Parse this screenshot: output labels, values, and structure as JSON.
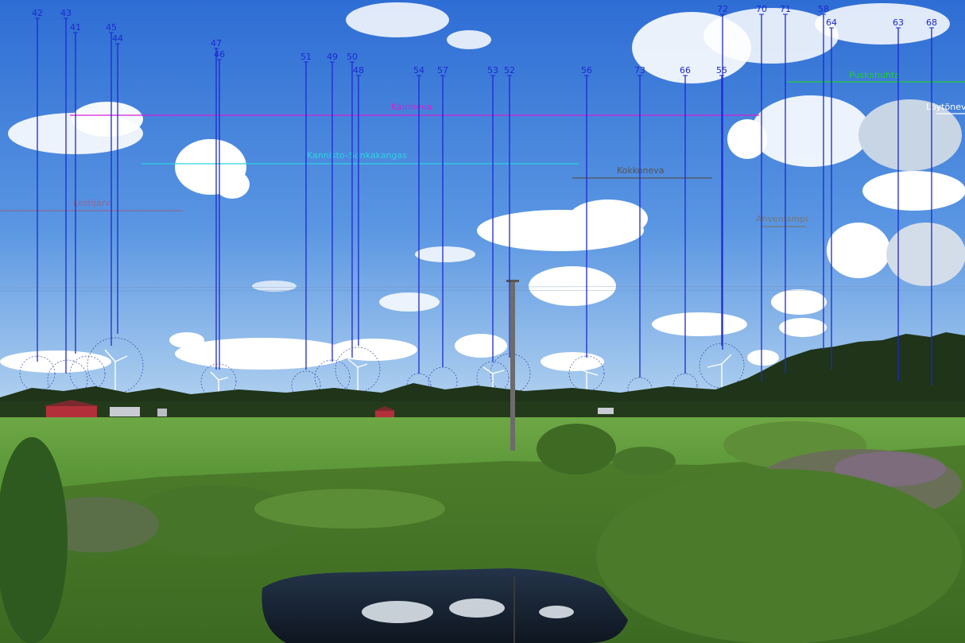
{
  "turbine_markers": [
    {
      "label": "42"
    },
    {
      "label": "43"
    },
    {
      "label": "41"
    },
    {
      "label": "45"
    },
    {
      "label": "44"
    },
    {
      "label": "47"
    },
    {
      "label": "46"
    },
    {
      "label": "51"
    },
    {
      "label": "49"
    },
    {
      "label": "50"
    },
    {
      "label": "48"
    },
    {
      "label": "54"
    },
    {
      "label": "57"
    },
    {
      "label": "53"
    },
    {
      "label": "52"
    },
    {
      "label": "56"
    },
    {
      "label": "73"
    },
    {
      "label": "66"
    },
    {
      "label": "55"
    },
    {
      "label": "72"
    },
    {
      "label": "70"
    },
    {
      "label": "71"
    },
    {
      "label": "58"
    },
    {
      "label": "64"
    },
    {
      "label": "63"
    },
    {
      "label": "68"
    }
  ],
  "wind_farm_labels": [
    {
      "label": "Kairineva",
      "color": "#d81ed8"
    },
    {
      "label": "Kannisto–Sonkakangas",
      "color": "#2ad4e0"
    },
    {
      "label": "Kokkoneva",
      "color": "#555555"
    },
    {
      "label": "Lestijärvi",
      "color": "#8a6a9a"
    },
    {
      "label": "Ahvenlampi",
      "color": "#777777"
    },
    {
      "label": "Puskahuhta",
      "color": "#22cc33"
    },
    {
      "label": "Löytöneva",
      "color": "#ffffff"
    }
  ],
  "colors": {
    "marker_line": "#1c2ad0",
    "sky_top": "#2f6fd6",
    "sky_bottom": "#a9cdef",
    "field": "#5f9a3a",
    "water": "#1c2a3a"
  }
}
